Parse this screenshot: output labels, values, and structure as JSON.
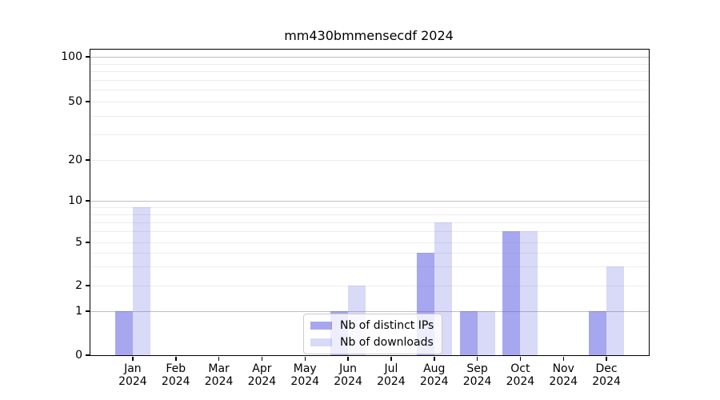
{
  "chart_data": {
    "type": "bar",
    "title": "mm430bmmensecdf 2024",
    "categories": [
      "Jan 2024",
      "Feb 2024",
      "Mar 2024",
      "Apr 2024",
      "May 2024",
      "Jun 2024",
      "Jul 2024",
      "Aug 2024",
      "Sep 2024",
      "Oct 2024",
      "Nov 2024",
      "Dec 2024"
    ],
    "series": [
      {
        "name": "Nb of distinct IPs",
        "color": "#5050e0",
        "alpha": 0.5,
        "values": [
          1,
          0,
          0,
          0,
          0,
          1,
          0,
          4,
          1,
          6,
          0,
          1
        ]
      },
      {
        "name": "Nb of downloads",
        "color": "#5050e0",
        "alpha": 0.22,
        "values": [
          9,
          0,
          0,
          0,
          0,
          2,
          0,
          7,
          1,
          6,
          0,
          3
        ]
      }
    ],
    "xlabel": "",
    "ylabel": "",
    "yticks": [
      0,
      1,
      2,
      5,
      10,
      20,
      50,
      100
    ],
    "ylim": [
      0,
      110
    ],
    "scale": "log-above-1-linear-below",
    "grid": "on",
    "legend_position": "lower center"
  }
}
